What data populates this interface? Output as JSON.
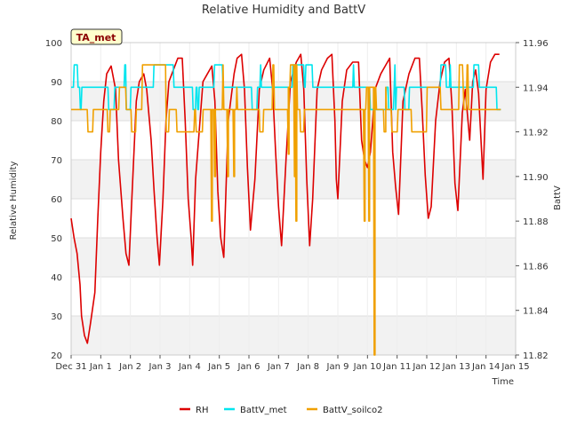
{
  "chart_data": {
    "type": "line",
    "title": "Relative Humidity and BattV",
    "tag": "TA_met",
    "xlabel": "Time",
    "ylabel_left": "Relative Humidity",
    "ylabel_right": "BattV",
    "x_ticks": [
      "Dec 31",
      "Jan 1",
      "Jan 2",
      "Jan 3",
      "Jan 4",
      "Jan 5",
      "Jan 6",
      "Jan 7",
      "Jan 8",
      "Jan 9",
      "Jan 10",
      "Jan 11",
      "Jan 12",
      "Jan 13",
      "Jan 14",
      "Jan 15"
    ],
    "xlim": [
      0,
      15
    ],
    "ylim_left": [
      20,
      100
    ],
    "y_ticks_left": [
      20,
      30,
      40,
      50,
      60,
      70,
      80,
      90,
      100
    ],
    "ylim_right": [
      11.82,
      11.96
    ],
    "y_ticks_right": [
      "11.82",
      "11.84",
      "11.86",
      "11.88",
      "11.90",
      "11.92",
      "11.94",
      "11.96"
    ],
    "grid": true,
    "legend_position": "bottom",
    "series": [
      {
        "name": "RH",
        "axis": "left",
        "color": "#dd0000",
        "points": [
          [
            0,
            55
          ],
          [
            0.1,
            50
          ],
          [
            0.2,
            46
          ],
          [
            0.3,
            38
          ],
          [
            0.35,
            30
          ],
          [
            0.45,
            25
          ],
          [
            0.55,
            23
          ],
          [
            0.65,
            28
          ],
          [
            0.8,
            36
          ],
          [
            0.9,
            55
          ],
          [
            1.0,
            72
          ],
          [
            1.1,
            85
          ],
          [
            1.2,
            92
          ],
          [
            1.35,
            94
          ],
          [
            1.5,
            88
          ],
          [
            1.6,
            70
          ],
          [
            1.75,
            55
          ],
          [
            1.85,
            46
          ],
          [
            1.95,
            43
          ],
          [
            2.05,
            60
          ],
          [
            2.2,
            85
          ],
          [
            2.3,
            90
          ],
          [
            2.45,
            92
          ],
          [
            2.55,
            88
          ],
          [
            2.7,
            75
          ],
          [
            2.8,
            62
          ],
          [
            2.9,
            50
          ],
          [
            2.98,
            43
          ],
          [
            3.1,
            60
          ],
          [
            3.2,
            80
          ],
          [
            3.3,
            90
          ],
          [
            3.45,
            93
          ],
          [
            3.6,
            96
          ],
          [
            3.75,
            96
          ],
          [
            3.85,
            80
          ],
          [
            3.95,
            60
          ],
          [
            4.05,
            50
          ],
          [
            4.1,
            43
          ],
          [
            4.2,
            65
          ],
          [
            4.3,
            75
          ],
          [
            4.45,
            90
          ],
          [
            4.6,
            92
          ],
          [
            4.75,
            94
          ],
          [
            4.85,
            85
          ],
          [
            4.95,
            62
          ],
          [
            5.05,
            50
          ],
          [
            5.15,
            45
          ],
          [
            5.3,
            80
          ],
          [
            5.5,
            92
          ],
          [
            5.6,
            96
          ],
          [
            5.75,
            97
          ],
          [
            5.85,
            88
          ],
          [
            5.95,
            68
          ],
          [
            6.05,
            52
          ],
          [
            6.2,
            65
          ],
          [
            6.35,
            88
          ],
          [
            6.5,
            93
          ],
          [
            6.7,
            96
          ],
          [
            6.8,
            88
          ],
          [
            6.9,
            72
          ],
          [
            7.0,
            58
          ],
          [
            7.1,
            48
          ],
          [
            7.25,
            70
          ],
          [
            7.4,
            90
          ],
          [
            7.6,
            95
          ],
          [
            7.75,
            97
          ],
          [
            7.85,
            88
          ],
          [
            7.95,
            65
          ],
          [
            8.05,
            48
          ],
          [
            8.15,
            60
          ],
          [
            8.3,
            88
          ],
          [
            8.45,
            93
          ],
          [
            8.65,
            96
          ],
          [
            8.8,
            97
          ],
          [
            8.9,
            80
          ],
          [
            8.95,
            65
          ],
          [
            9.0,
            60
          ],
          [
            9.15,
            85
          ],
          [
            9.3,
            93
          ],
          [
            9.5,
            95
          ],
          [
            9.7,
            95
          ],
          [
            9.8,
            75
          ],
          [
            9.9,
            70
          ],
          [
            10.0,
            68
          ],
          [
            10.1,
            72
          ],
          [
            10.25,
            88
          ],
          [
            10.45,
            92
          ],
          [
            10.6,
            94
          ],
          [
            10.75,
            96
          ],
          [
            10.85,
            72
          ],
          [
            10.95,
            63
          ],
          [
            11.05,
            56
          ],
          [
            11.2,
            85
          ],
          [
            11.4,
            92
          ],
          [
            11.6,
            96
          ],
          [
            11.75,
            96
          ],
          [
            11.85,
            82
          ],
          [
            11.95,
            66
          ],
          [
            12.05,
            55
          ],
          [
            12.15,
            58
          ],
          [
            12.3,
            80
          ],
          [
            12.45,
            90
          ],
          [
            12.6,
            95
          ],
          [
            12.75,
            96
          ],
          [
            12.85,
            84
          ],
          [
            12.95,
            64
          ],
          [
            13.05,
            57
          ],
          [
            13.2,
            82
          ],
          [
            13.3,
            88
          ],
          [
            13.45,
            75
          ],
          [
            13.55,
            90
          ],
          [
            13.65,
            93
          ],
          [
            13.75,
            87
          ],
          [
            13.85,
            72
          ],
          [
            13.9,
            65
          ],
          [
            14.0,
            88
          ],
          [
            14.15,
            95
          ],
          [
            14.3,
            97
          ],
          [
            14.45,
            97
          ]
        ]
      },
      {
        "name": "BattV_met",
        "axis": "right",
        "color": "#00e5ee",
        "base": 11.94,
        "levels": [
          11.93,
          11.94,
          11.95
        ],
        "x_range": [
          0,
          14.5
        ]
      },
      {
        "name": "BattV_soilco2",
        "axis": "right",
        "color": "#f0a000",
        "base": 11.93,
        "levels": [
          11.92,
          11.93,
          11.94,
          11.95
        ],
        "dips": [
          [
            4.75,
            11.88
          ],
          [
            4.85,
            11.9
          ],
          [
            5.3,
            11.9
          ],
          [
            5.5,
            11.9
          ],
          [
            7.35,
            11.91
          ],
          [
            7.55,
            11.9
          ],
          [
            7.6,
            11.88
          ],
          [
            9.9,
            11.88
          ],
          [
            10.05,
            11.88
          ],
          [
            10.25,
            11.82
          ],
          [
            10.6,
            11.92
          ],
          [
            11.85,
            11.92
          ]
        ],
        "x_range": [
          0,
          14.5
        ]
      }
    ]
  }
}
